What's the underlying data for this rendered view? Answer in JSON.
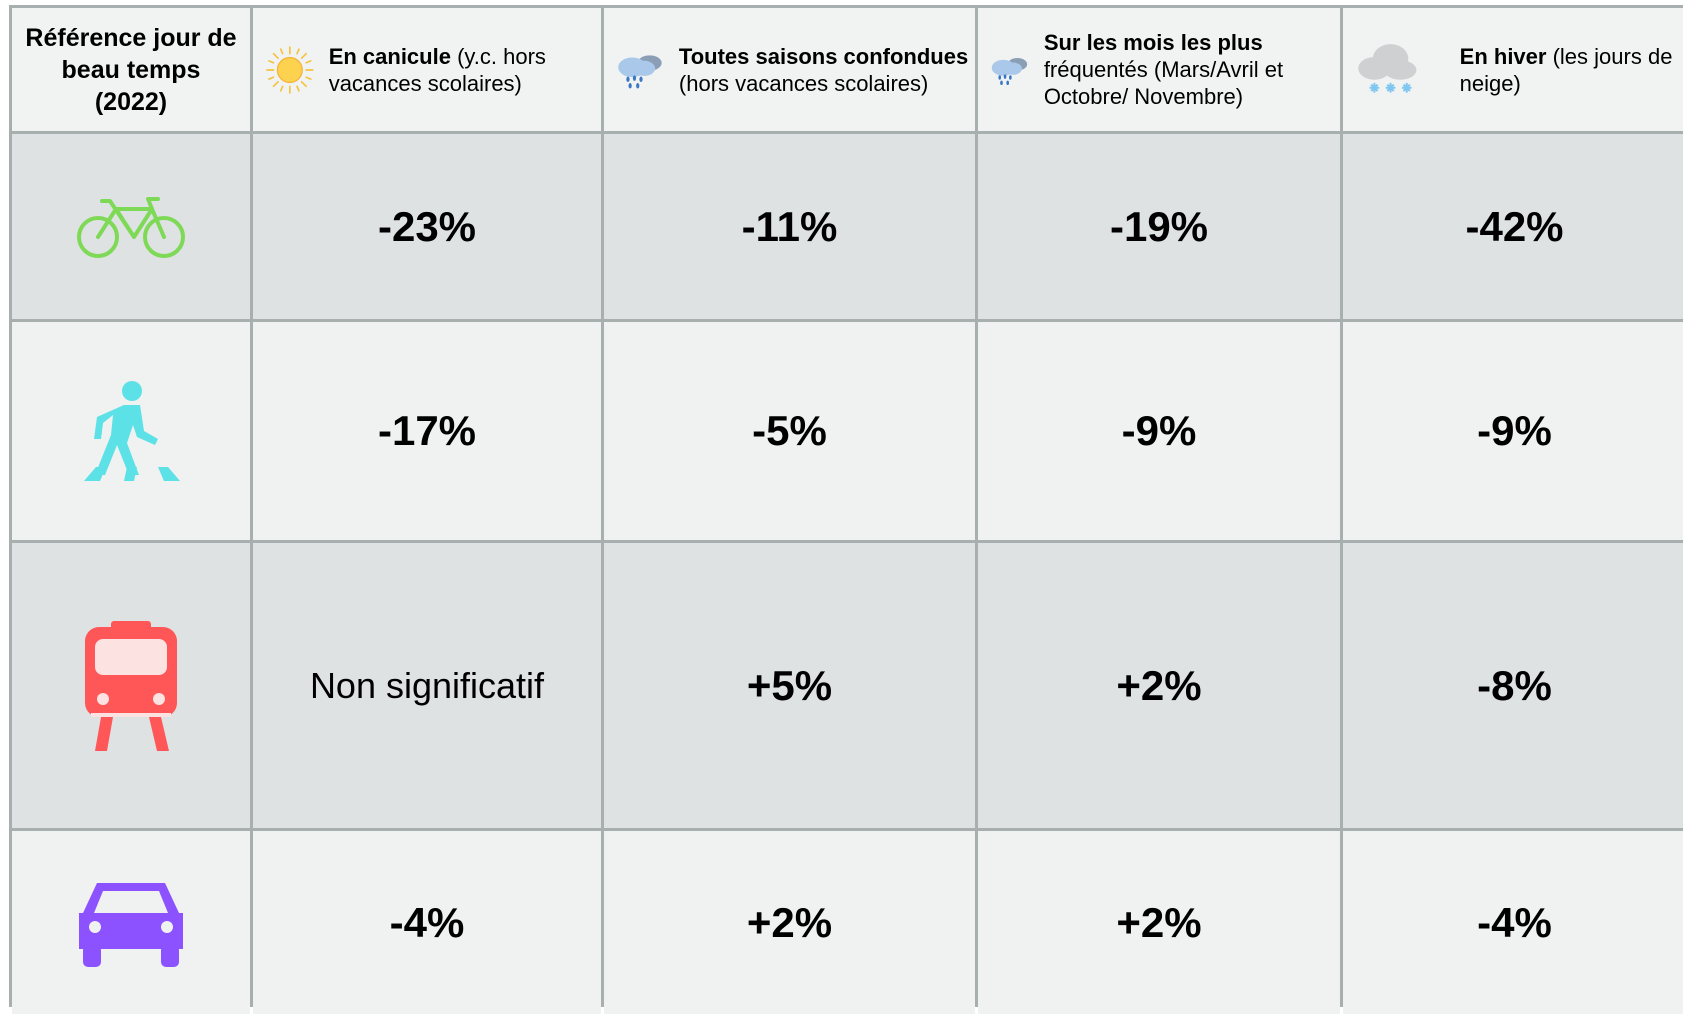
{
  "header": [
    {
      "bold": "Référence jour de beau temps (2022)"
    },
    {
      "bold": "En canicule",
      "normal": "(y.c. hors vacances scolaires)"
    },
    {
      "bold": "Toutes saisons confondues",
      "normal": "(hors vacances scolaires)"
    },
    {
      "bold": "Sur les mois les plus",
      "normal": "fréquentés (Mars/Avril et Octobre/ Novembre)"
    },
    {
      "bold": "En hiver",
      "normal": "(les jours de neige)"
    }
  ],
  "rows": [
    [
      "-23%",
      "-11%",
      "-19%",
      "-42%"
    ],
    [
      "-17%",
      "-5%",
      "-9%",
      "-9%"
    ],
    [
      "Non significatif",
      "+5%",
      "+2%",
      "-8%"
    ],
    [
      "-4%",
      "+2%",
      "+2%",
      "-4%"
    ]
  ]
}
